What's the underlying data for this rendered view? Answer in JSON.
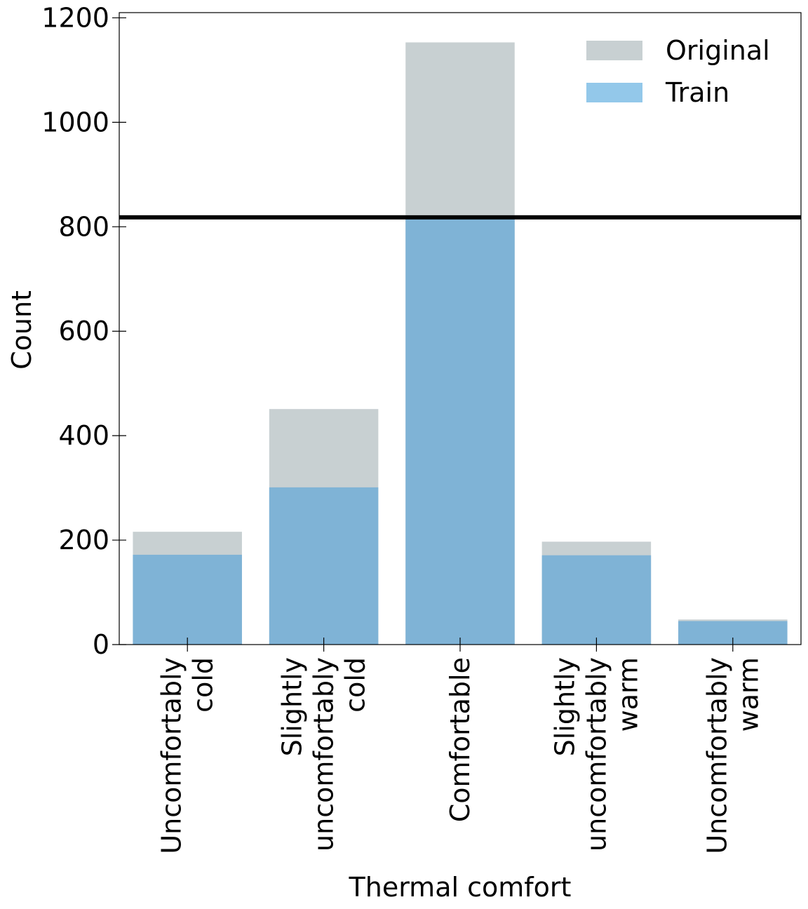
{
  "chart_data": {
    "type": "bar",
    "title": "",
    "xlabel": "Thermal comfort",
    "ylabel": "Count",
    "categories": [
      [
        "Uncomfortably",
        "cold"
      ],
      [
        "Slightly",
        "uncomfortably",
        "cold"
      ],
      [
        "Comfortable"
      ],
      [
        "Slightly",
        "uncomfortably",
        "warm"
      ],
      [
        "Uncomfortably",
        "warm"
      ]
    ],
    "series": [
      {
        "name": "Original",
        "values": [
          216,
          451,
          1153,
          197,
          48
        ],
        "color": "#c8d0d2"
      },
      {
        "name": "Train",
        "values": [
          172,
          301,
          818,
          171,
          45
        ],
        "color": "#7fb3d6"
      }
    ],
    "legend_swatch_train_color": "#93c8ea",
    "hline": {
      "value": 818,
      "color": "#000000"
    },
    "ylim": [
      0,
      1210
    ],
    "yticks": [
      0,
      200,
      400,
      600,
      800,
      1000,
      1200
    ],
    "grid": false,
    "legend_position": "top-right"
  }
}
